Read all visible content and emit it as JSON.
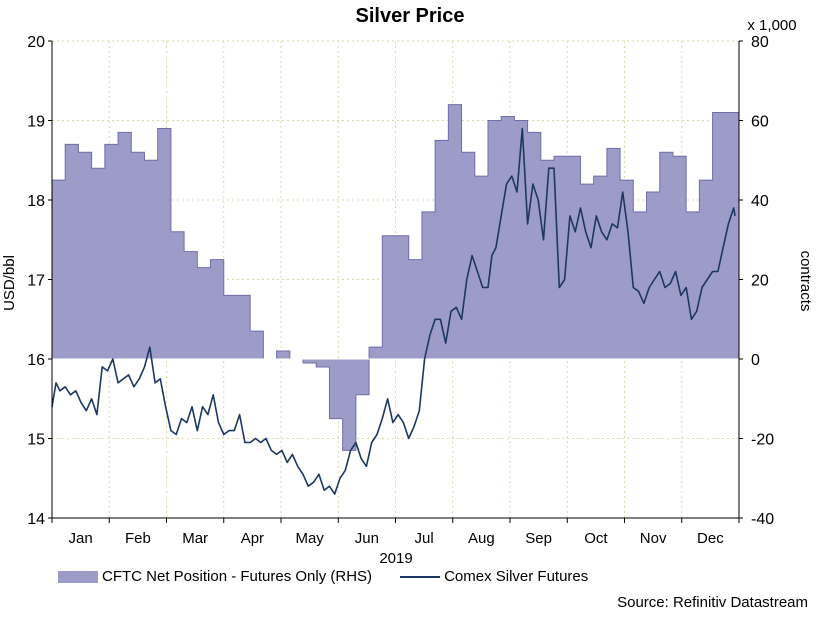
{
  "chart_data": {
    "type": "line",
    "title": "Silver Price",
    "xlabel": "2019",
    "ylabel_left": "USD/bbl",
    "ylabel_right": "contracts",
    "right_axis_multiplier": "x 1,000",
    "ylim_left": [
      14,
      20
    ],
    "ylim_right": [
      -40,
      80
    ],
    "yticks_left": [
      "14",
      "15",
      "16",
      "17",
      "18",
      "19",
      "20"
    ],
    "yticks_right": [
      "-40",
      "-20",
      "0",
      "20",
      "40",
      "60",
      "80"
    ],
    "month_labels": [
      "Jan",
      "Feb",
      "Mar",
      "Apr",
      "May",
      "Jun",
      "Jul",
      "Aug",
      "Sep",
      "Oct",
      "Nov",
      "Dec"
    ],
    "grid": true,
    "legend_position": "bottom-left",
    "source": "Source: Refinitiv Datastream",
    "colors": {
      "area_fill": "#9d9cc9",
      "area_edge": "#6f6ea8",
      "line": "#1d3763",
      "grid": "#d9d9a8"
    },
    "series": [
      {
        "name": "CFTC Net Position - Futures Only (RHS)",
        "axis": "right",
        "kind": "step-area",
        "x_week": [
          0,
          1,
          2,
          3,
          4,
          5,
          6,
          7,
          8,
          9,
          10,
          11,
          12,
          13,
          14,
          15,
          16,
          17,
          18,
          19,
          20,
          21,
          22,
          23,
          24,
          25,
          26,
          27,
          28,
          29,
          30,
          31,
          32,
          33,
          34,
          35,
          36,
          37,
          38,
          39,
          40,
          41,
          42,
          43,
          44,
          45,
          46,
          47,
          48,
          49,
          50,
          51
        ],
        "values": [
          45,
          54,
          52,
          48,
          54,
          57,
          52,
          50,
          58,
          32,
          27,
          23,
          25,
          16,
          16,
          7,
          0,
          2,
          0,
          -1,
          -2,
          -15,
          -23,
          -9,
          3,
          31,
          31,
          25,
          37,
          55,
          64,
          52,
          46,
          60,
          61,
          60,
          57,
          50,
          51,
          51,
          44,
          46,
          53,
          45,
          37,
          42,
          52,
          51,
          37,
          45,
          62,
          62
        ]
      },
      {
        "name": "Comex Silver Futures",
        "axis": "left",
        "kind": "line",
        "x_week": [
          0,
          0.3,
          0.6,
          1.0,
          1.4,
          1.8,
          2.2,
          2.6,
          3.0,
          3.4,
          3.8,
          4.2,
          4.6,
          5.0,
          5.4,
          5.8,
          6.2,
          6.6,
          7.0,
          7.4,
          7.8,
          8.2,
          8.6,
          9.0,
          9.4,
          9.8,
          10.2,
          10.6,
          11.0,
          11.4,
          11.8,
          12.2,
          12.6,
          13.0,
          13.4,
          13.8,
          14.2,
          14.6,
          15.0,
          15.4,
          15.8,
          16.2,
          16.6,
          17.0,
          17.4,
          17.8,
          18.2,
          18.6,
          19.0,
          19.4,
          19.8,
          20.2,
          20.6,
          21.0,
          21.4,
          21.8,
          22.2,
          22.6,
          23.0,
          23.4,
          23.8,
          24.2,
          24.6,
          25.0,
          25.4,
          25.8,
          26.2,
          26.6,
          27.0,
          27.4,
          27.8,
          28.2,
          28.6,
          29.0,
          29.4,
          29.8,
          30.2,
          30.6,
          31.0,
          31.4,
          31.8,
          32.2,
          32.6,
          33.0,
          33.3,
          33.6,
          34.0,
          34.4,
          34.8,
          35.2,
          35.6,
          36.0,
          36.4,
          36.8,
          37.2,
          37.6,
          38.0,
          38.4,
          38.8,
          39.2,
          39.6,
          40.0,
          40.4,
          40.8,
          41.2,
          41.6,
          42.0,
          42.4,
          42.8,
          43.2,
          43.6,
          44.0,
          44.4,
          44.8,
          45.2,
          45.6,
          46.0,
          46.4,
          46.8,
          47.2,
          47.6,
          48.0,
          48.4,
          48.8,
          49.2,
          49.6,
          50.0,
          50.4,
          50.8,
          51.2,
          51.6,
          51.7
        ],
        "values": [
          15.4,
          15.7,
          15.6,
          15.65,
          15.55,
          15.6,
          15.45,
          15.35,
          15.5,
          15.3,
          15.9,
          15.85,
          16.0,
          15.7,
          15.75,
          15.8,
          15.65,
          15.75,
          15.9,
          16.15,
          15.7,
          15.75,
          15.4,
          15.1,
          15.05,
          15.25,
          15.2,
          15.4,
          15.1,
          15.4,
          15.3,
          15.55,
          15.2,
          15.05,
          15.1,
          15.1,
          15.3,
          14.95,
          14.95,
          15.0,
          14.95,
          15.0,
          14.85,
          14.8,
          14.85,
          14.7,
          14.8,
          14.65,
          14.55,
          14.4,
          14.45,
          14.55,
          14.35,
          14.4,
          14.3,
          14.5,
          14.6,
          14.85,
          14.95,
          14.75,
          14.65,
          14.95,
          15.05,
          15.25,
          15.5,
          15.2,
          15.3,
          15.2,
          15.0,
          15.15,
          15.35,
          16.0,
          16.3,
          16.5,
          16.5,
          16.2,
          16.6,
          16.65,
          16.5,
          17.0,
          17.3,
          17.1,
          16.9,
          16.9,
          17.3,
          17.4,
          17.8,
          18.2,
          18.3,
          18.1,
          18.9,
          17.7,
          18.2,
          18.0,
          17.5,
          18.4,
          18.4,
          16.9,
          17.0,
          17.8,
          17.6,
          17.9,
          17.6,
          17.4,
          17.8,
          17.6,
          17.5,
          17.7,
          17.65,
          18.1,
          17.6,
          16.9,
          16.85,
          16.7,
          16.9,
          17.0,
          17.1,
          16.9,
          16.95,
          17.1,
          16.8,
          16.9,
          16.5,
          16.6,
          16.9,
          17.0,
          17.1,
          17.1,
          17.4,
          17.7,
          17.9,
          17.8
        ]
      }
    ]
  }
}
